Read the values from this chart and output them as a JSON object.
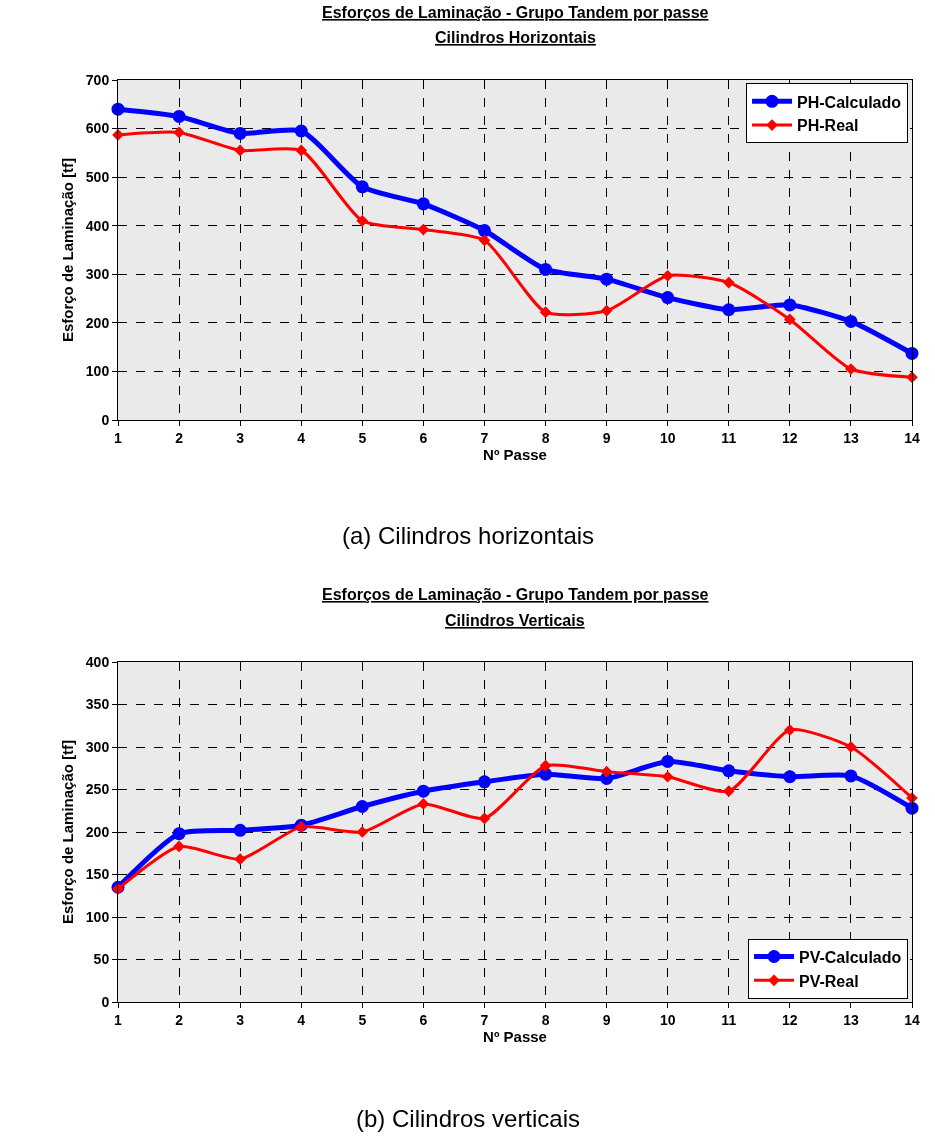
{
  "chart_data": [
    {
      "type": "line",
      "title": "Esforços de Laminação - Grupo Tandem por passe",
      "subtitle": "Cilindros Horizontais",
      "xlabel": "Nº Passe",
      "ylabel": "Esforço de Laminação [tf]",
      "x": [
        1,
        2,
        3,
        4,
        5,
        6,
        7,
        8,
        9,
        10,
        11,
        12,
        13,
        14
      ],
      "series": [
        {
          "name": "PH-Calculado",
          "color": "#0000ff",
          "marker": "circle",
          "values": [
            640,
            625,
            590,
            595,
            480,
            445,
            390,
            310,
            290,
            252,
            227,
            237,
            203,
            137
          ]
        },
        {
          "name": "PH-Real",
          "color": "#ff0000",
          "marker": "diamond",
          "values": [
            587,
            592,
            555,
            555,
            410,
            392,
            370,
            222,
            225,
            297,
            283,
            207,
            105,
            88
          ]
        }
      ],
      "xlim": [
        1,
        14
      ],
      "xticks": [
        1,
        2,
        3,
        4,
        5,
        6,
        7,
        8,
        9,
        10,
        11,
        12,
        13,
        14
      ],
      "ylim": [
        0,
        700
      ],
      "yticks": [
        0,
        100,
        200,
        300,
        400,
        500,
        600,
        700
      ],
      "grid": true,
      "legend": "top right",
      "line_style": "solid",
      "annotations": [
        "(a) Cilindros horizontais"
      ]
    },
    {
      "type": "line",
      "title": "Esforços de Laminação - Grupo Tandem por passe",
      "subtitle": "Cilindros Verticais",
      "xlabel": "Nº Passe",
      "ylabel": "Esforço de Laminação [tf]",
      "x": [
        1,
        2,
        3,
        4,
        5,
        6,
        7,
        8,
        9,
        10,
        11,
        12,
        13,
        14
      ],
      "series": [
        {
          "name": "PV-Calculado",
          "color": "#0000ff",
          "marker": "circle",
          "values": [
            135,
            198,
            202,
            208,
            230,
            248,
            259,
            268,
            263,
            283,
            272,
            265,
            266,
            228
          ]
        },
        {
          "name": "PV-Real",
          "color": "#ff0000",
          "marker": "diamond",
          "values": [
            133,
            183,
            168,
            206,
            200,
            233,
            216,
            278,
            271,
            265,
            248,
            320,
            300,
            240
          ]
        }
      ],
      "xlim": [
        1,
        14
      ],
      "xticks": [
        1,
        2,
        3,
        4,
        5,
        6,
        7,
        8,
        9,
        10,
        11,
        12,
        13,
        14
      ],
      "ylim": [
        0,
        400
      ],
      "yticks": [
        0,
        50,
        100,
        150,
        200,
        250,
        300,
        350,
        400
      ],
      "grid": true,
      "legend": "bottom right",
      "line_style": "solid",
      "annotations": [
        "(b) Cilindros verticais"
      ]
    }
  ]
}
